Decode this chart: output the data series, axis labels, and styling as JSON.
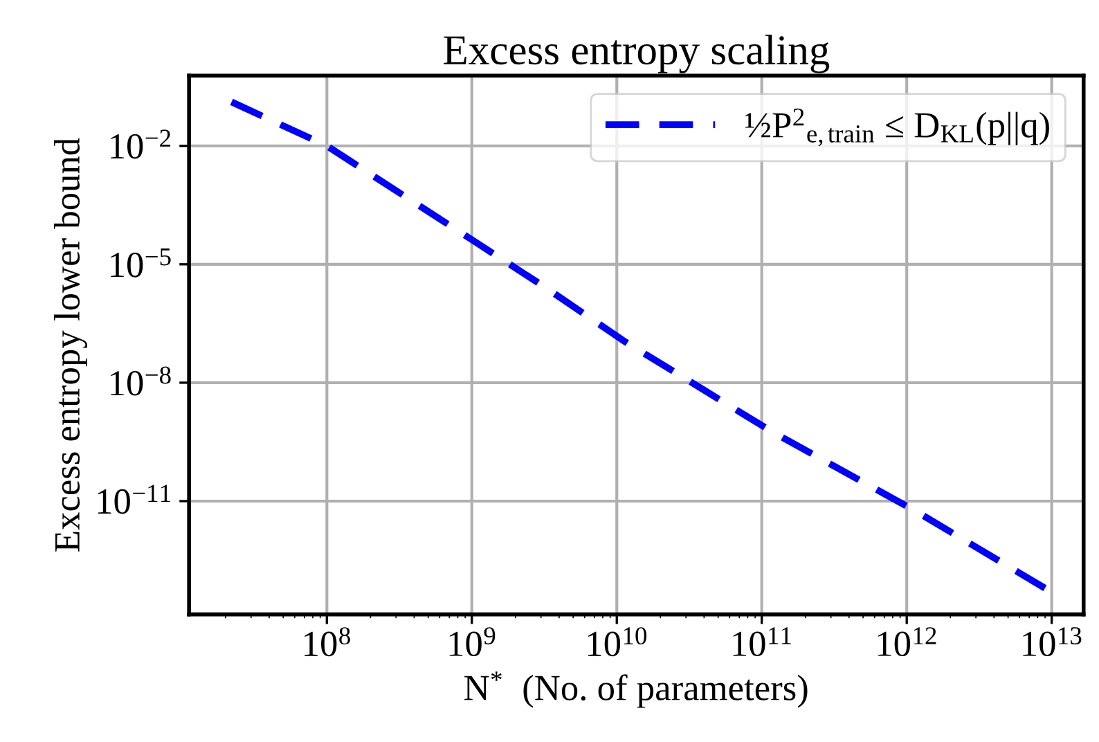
{
  "chart_data": {
    "type": "line",
    "title": "Excess entropy scaling",
    "xlabel": "N$^{*}$  (No. of parameters)",
    "ylabel": "Excess entropy lower bound",
    "x": [
      22000000.0,
      100000000.0,
      1000000000.0,
      3160000000.0,
      11500000000.0,
      117000000000.0,
      1170000000000.0,
      9500000000000.0
    ],
    "series": [
      {
        "name": "½P$^{2}$$_{e,train}$ ≤ D$_{KL}$(p||q)",
        "color": "#0000ff",
        "values": [
          0.13,
          0.01,
          4.2e-05,
          2.7e-06,
          1.07e-07,
          5.8e-10,
          5.4e-12,
          5.5e-14
        ]
      }
    ],
    "log": "xy",
    "xlim": [
      11200000.0,
      16600000000000.0
    ],
    "ylim": [
      1.35e-14,
      0.6
    ],
    "xticks": [
      {
        "value": 100000000.0,
        "label": "10$^{8}$"
      },
      {
        "value": 1000000000.0,
        "label": "10$^{9}$"
      },
      {
        "value": 10000000000.0,
        "label": "10$^{10}$"
      },
      {
        "value": 100000000000.0,
        "label": "10$^{11}$"
      },
      {
        "value": 1000000000000.0,
        "label": "10$^{12}$"
      },
      {
        "value": 10000000000000.0,
        "label": "10$^{13}$"
      }
    ],
    "yticks": [
      {
        "value": 1e-11,
        "label": "10$^{−11}$"
      },
      {
        "value": 1e-08,
        "label": "10$^{−8}$"
      },
      {
        "value": 1e-05,
        "label": "10$^{−5}$"
      },
      {
        "value": 0.01,
        "label": "10$^{−2}$"
      }
    ],
    "grid": true,
    "legend": "top right",
    "line_style": "dashed",
    "marker": "none"
  }
}
